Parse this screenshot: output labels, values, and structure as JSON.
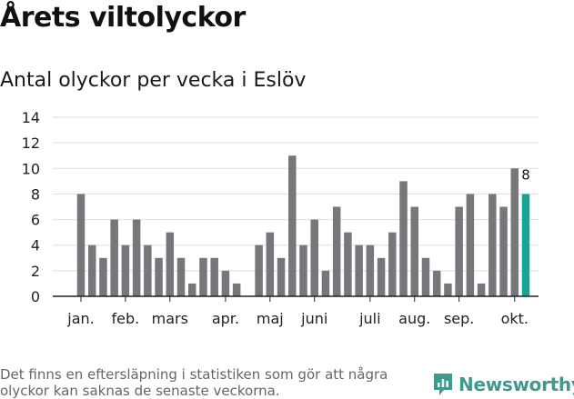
{
  "header": {
    "title": "Årets viltolyckor",
    "subtitle": "Antal olyckor per vecka i Eslöv"
  },
  "footer": {
    "note": "Det finns en eftersläpning i statistiken som gör att några olyckor kan saknas de senaste veckorna.",
    "brand": "Newsworthy"
  },
  "colors": {
    "bar": "#77767a",
    "highlight": "#17a398",
    "grid": "#dddddd",
    "axis": "#222222",
    "brand": "#3f9a8e"
  },
  "chart_data": {
    "type": "bar",
    "title": "Antal olyckor per vecka i Eslöv",
    "xlabel": "",
    "ylabel": "",
    "ylim": [
      0,
      14
    ],
    "yticks": [
      0,
      2,
      4,
      6,
      8,
      10,
      12,
      14
    ],
    "grid": true,
    "weeks": [
      1,
      2,
      3,
      4,
      5,
      6,
      7,
      8,
      9,
      10,
      11,
      12,
      13,
      14,
      15,
      16,
      17,
      18,
      19,
      20,
      21,
      22,
      23,
      24,
      25,
      26,
      27,
      28,
      29,
      30,
      31,
      32,
      33,
      34,
      35,
      36,
      37,
      38,
      39,
      40,
      41
    ],
    "values": [
      8,
      4,
      3,
      6,
      4,
      6,
      4,
      3,
      5,
      3,
      1,
      3,
      3,
      2,
      1,
      0,
      4,
      5,
      3,
      11,
      4,
      6,
      2,
      7,
      5,
      4,
      4,
      3,
      5,
      9,
      7,
      3,
      2,
      1,
      7,
      8,
      1,
      8,
      7,
      10,
      8
    ],
    "highlight_index": 40,
    "highlight_label": "8",
    "month_labels": [
      {
        "label": "jan.",
        "week": 1
      },
      {
        "label": "feb.",
        "week": 5
      },
      {
        "label": "mars",
        "week": 9
      },
      {
        "label": "apr.",
        "week": 14
      },
      {
        "label": "maj",
        "week": 18
      },
      {
        "label": "juni",
        "week": 22
      },
      {
        "label": "juli",
        "week": 27
      },
      {
        "label": "aug.",
        "week": 31
      },
      {
        "label": "sep.",
        "week": 35
      },
      {
        "label": "okt.",
        "week": 40
      }
    ]
  }
}
